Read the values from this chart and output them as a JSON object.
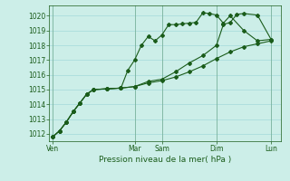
{
  "xlabel": "Pression niveau de la mer( hPa )",
  "background_color": "#cceee8",
  "grid_color": "#aadddd",
  "line_color": "#1a5c1a",
  "ylim": [
    1011.5,
    1020.7
  ],
  "yticks": [
    1012,
    1013,
    1014,
    1015,
    1016,
    1017,
    1018,
    1019,
    1020
  ],
  "day_labels": [
    "Ven",
    "Mar",
    "Sam",
    "Dim",
    "Lun"
  ],
  "day_x": [
    0,
    12,
    16,
    24,
    32
  ],
  "xlim": [
    -0.5,
    33.5
  ],
  "series1_x": [
    0,
    1,
    2,
    3,
    4,
    5,
    6,
    8,
    10,
    11,
    12,
    13,
    14,
    15,
    16,
    17,
    18,
    19,
    20,
    21,
    22,
    23,
    24,
    25,
    26,
    28,
    30,
    32
  ],
  "series1_y": [
    1011.8,
    1012.2,
    1012.8,
    1013.5,
    1014.1,
    1014.7,
    1015.0,
    1015.05,
    1015.1,
    1016.3,
    1017.0,
    1018.0,
    1018.6,
    1018.3,
    1018.7,
    1019.4,
    1019.4,
    1019.45,
    1019.5,
    1019.55,
    1020.2,
    1020.15,
    1020.05,
    1019.5,
    1020.0,
    1019.0,
    1018.3,
    1018.4
  ],
  "series2_x": [
    0,
    1,
    2,
    3,
    4,
    5,
    6,
    8,
    10,
    12,
    14,
    16,
    18,
    20,
    22,
    24,
    25,
    26,
    27,
    28,
    30,
    32
  ],
  "series2_y": [
    1011.8,
    1012.2,
    1012.8,
    1013.5,
    1014.1,
    1014.7,
    1015.0,
    1015.05,
    1015.1,
    1015.2,
    1015.55,
    1015.7,
    1016.2,
    1016.8,
    1017.3,
    1018.0,
    1019.4,
    1019.55,
    1020.1,
    1020.15,
    1020.05,
    1018.4
  ],
  "series3_x": [
    0,
    1,
    2,
    3,
    4,
    5,
    6,
    8,
    10,
    12,
    14,
    16,
    18,
    20,
    22,
    24,
    26,
    28,
    30,
    32
  ],
  "series3_y": [
    1011.8,
    1012.2,
    1012.8,
    1013.5,
    1014.1,
    1014.7,
    1015.0,
    1015.05,
    1015.1,
    1015.2,
    1015.45,
    1015.6,
    1015.85,
    1016.2,
    1016.6,
    1017.1,
    1017.55,
    1017.9,
    1018.1,
    1018.3
  ],
  "marker_size": 2.0,
  "line_width": 0.8,
  "tick_fontsize": 5.5,
  "xlabel_fontsize": 6.5
}
